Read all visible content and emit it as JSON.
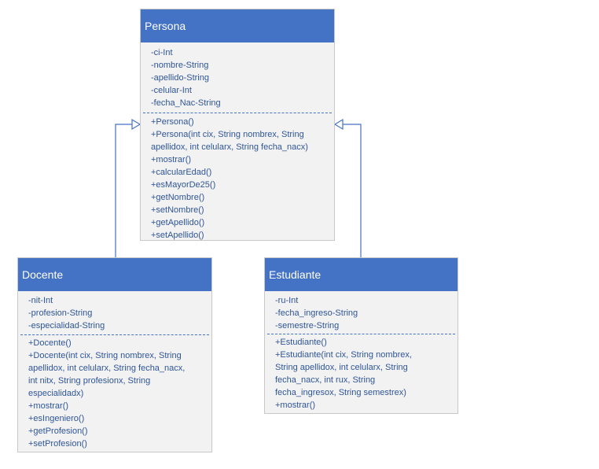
{
  "diagram": {
    "classes": {
      "persona": {
        "name": "Persona",
        "attributes": [
          "-ci-Int",
          "-nombre-String",
          "-apellido-String",
          "-celular-Int",
          "-fecha_Nac-String"
        ],
        "methods": [
          "+Persona()",
          "+Persona(int cix, String nombrex, String",
          "apellidox, int celularx, String fecha_nacx)",
          "+mostrar()",
          "+calcularEdad()",
          "+esMayorDe25()",
          "+getNombre()",
          "+setNombre()",
          "+getApellido()",
          "+setApellido()"
        ]
      },
      "docente": {
        "name": "Docente",
        "attributes": [
          "-nit-Int",
          "-profesion-String",
          "-especialidad-String"
        ],
        "methods": [
          "+Docente()",
          "+Docente(int cix, String nombrex, String",
          "apellidox, int celularx, String fecha_nacx,",
          "int nitx, String profesionx, String",
          "especialidadx)",
          "+mostrar()",
          "+esIngeniero()",
          "+getProfesion()",
          "+setProfesion()"
        ]
      },
      "estudiante": {
        "name": "Estudiante",
        "attributes": [
          "-ru-Int",
          "-fecha_ingreso-String",
          "-semestre-String"
        ],
        "methods": [
          "+Estudiante()",
          "+Estudiante(int cix, String nombrex,",
          "String apellidox, int celularx, String",
          "fecha_nacx, int rux, String",
          "fecha_ingresox, String semestrex)",
          "+mostrar()"
        ]
      }
    },
    "relations": [
      {
        "type": "inheritance",
        "from": "Docente",
        "to": "Persona"
      },
      {
        "type": "inheritance",
        "from": "Estudiante",
        "to": "Persona"
      }
    ],
    "colors": {
      "header": "#4472c4",
      "header_text": "#ffffff",
      "member_text": "#2f5597",
      "body": "#f2f2f2",
      "border": "#c8c8c8",
      "connector": "#4472c4"
    }
  }
}
